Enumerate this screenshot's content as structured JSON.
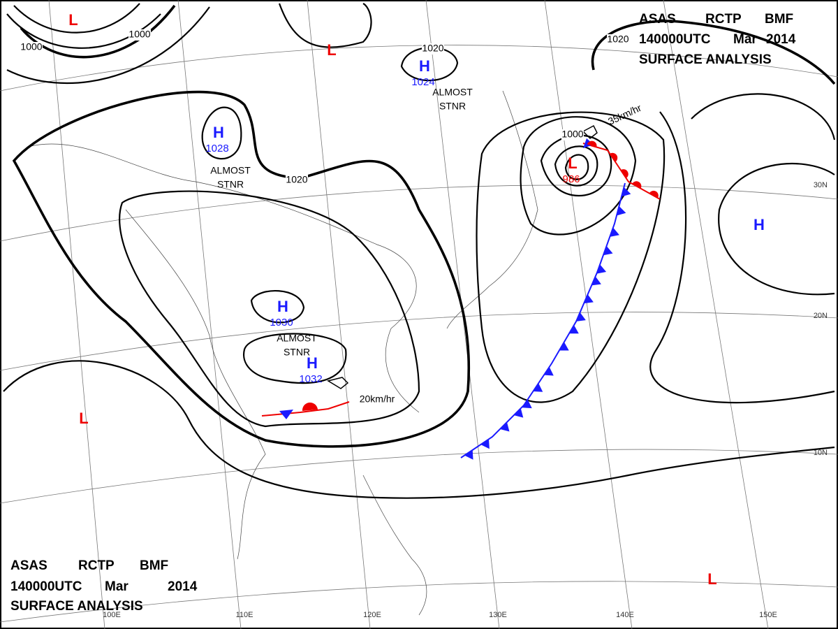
{
  "header": {
    "agency": "ASAS",
    "center": "RCTP",
    "code": "BMF",
    "time": "140000UTC",
    "month": "Mar",
    "year": "2014",
    "product": "SURFACE ANALYSIS"
  },
  "pressure_systems": [
    {
      "symbol": "L"
    },
    {
      "symbol": "L"
    },
    {
      "symbol": "H",
      "pressure": "1024"
    },
    {
      "symbol": "H",
      "pressure": "1028"
    },
    {
      "symbol": "H",
      "pressure": "1030"
    },
    {
      "symbol": "H",
      "pressure": "1032"
    },
    {
      "symbol": "L",
      "pressure": "986"
    },
    {
      "symbol": "H"
    },
    {
      "symbol": "L"
    },
    {
      "symbol": "L"
    }
  ],
  "isobar_labels": [
    "1000",
    "1000",
    "1020",
    "1020",
    "1020",
    "1000"
  ],
  "annotations": [
    {
      "lines": [
        "ALMOST",
        "STNR"
      ]
    },
    {
      "lines": [
        "ALMOST",
        "STNR"
      ]
    },
    {
      "lines": [
        "ALMOST",
        "STNR"
      ]
    }
  ],
  "movements": [
    "20km/hr",
    "35km/hr"
  ],
  "longitudes": [
    "100E",
    "110E",
    "120E",
    "130E",
    "140E",
    "150E"
  ],
  "latitudes": [
    "30N",
    "20N",
    "10N"
  ]
}
